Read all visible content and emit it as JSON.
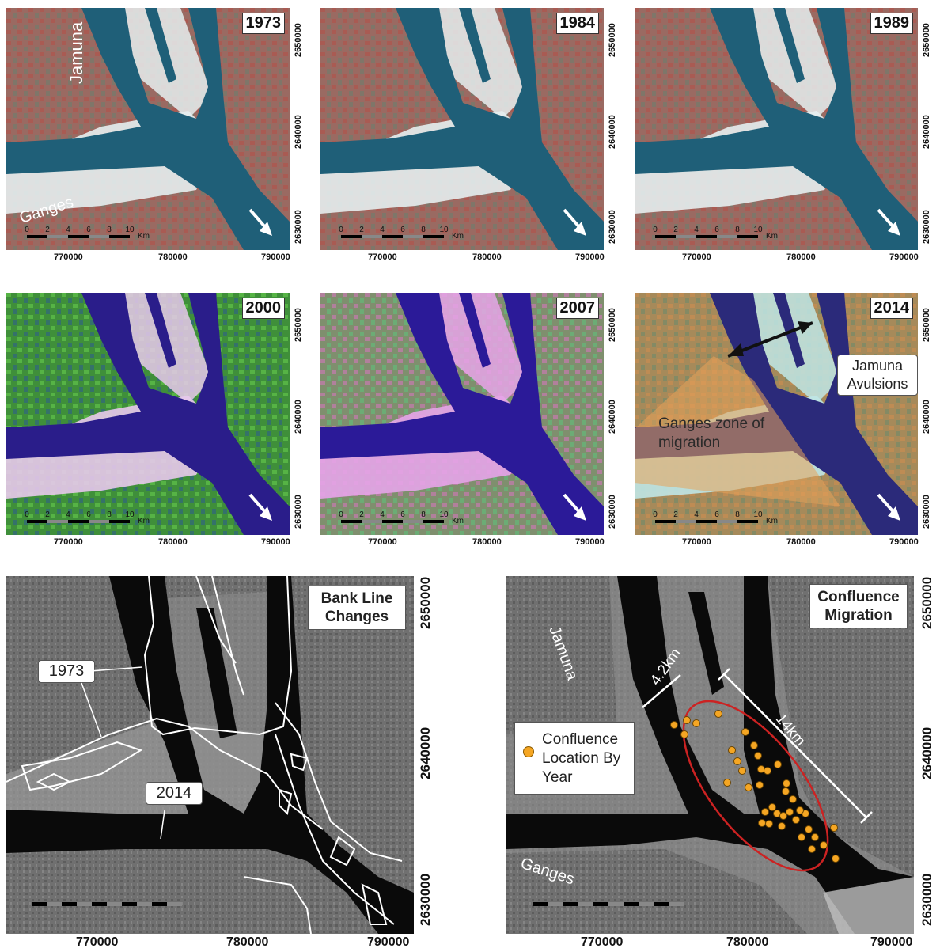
{
  "panels": [
    {
      "year": "1973",
      "scheme": "falsecolor"
    },
    {
      "year": "1984",
      "scheme": "falsecolor"
    },
    {
      "year": "1989",
      "scheme": "falsecolor"
    },
    {
      "year": "2000",
      "scheme": "green"
    },
    {
      "year": "2007",
      "scheme": "pink"
    },
    {
      "year": "2014",
      "scheme": "olive"
    }
  ],
  "small_x_ticks": [
    "770000",
    "780000",
    "790000"
  ],
  "small_y_ticks": [
    "2650000",
    "2640000",
    "2630000"
  ],
  "scale": {
    "labels": [
      "0",
      "2",
      "4",
      "6",
      "8",
      "10"
    ],
    "unit": "Km"
  },
  "labels_1973": {
    "jamuna": "Jamuna",
    "ganges": "Ganges"
  },
  "labels_2014": {
    "avulsions": "Jamuna Avulsions",
    "migration": "Ganges zone of migration"
  },
  "bank": {
    "title": "Bank Line Changes",
    "label_1973": "1973",
    "label_2014": "2014",
    "x_ticks": [
      "770000",
      "780000",
      "790000"
    ],
    "y_ticks": [
      "2650000",
      "2640000",
      "2630000"
    ]
  },
  "confluence": {
    "title": "Confluence Migration",
    "legend": "Confluence Location By Year",
    "jamuna": "Jamuna",
    "ganges": "Ganges",
    "dist_short": "4.2km",
    "dist_long": "14km",
    "x_ticks": [
      "770000",
      "780000",
      "790000"
    ],
    "y_ticks": [
      "2650000",
      "2640000",
      "2630000"
    ]
  },
  "colors": {
    "confluence_point": "#f5a623",
    "ellipse": "#cc2222",
    "migration_zone": "#e8a25a"
  }
}
